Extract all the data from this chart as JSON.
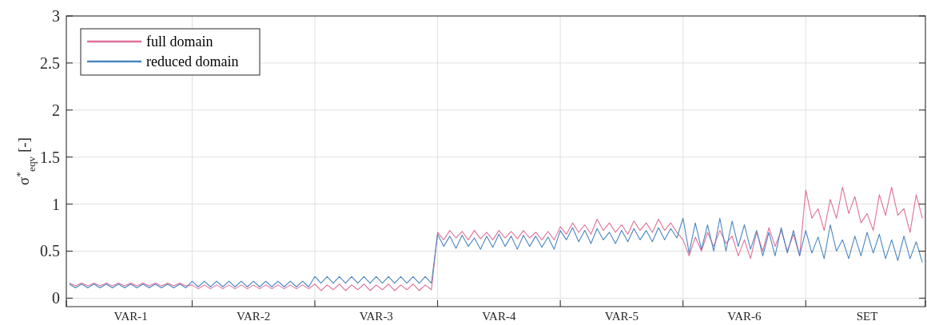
{
  "chart_data": {
    "type": "line",
    "ylabel": "σ$^{*}$$_{eqv}$ [-]",
    "categories": [
      null,
      null,
      null,
      null,
      null,
      null,
      null,
      null,
      null,
      null,
      "VAR-1",
      null,
      null,
      null,
      null,
      null,
      null,
      null,
      null,
      null,
      null,
      null,
      null,
      null,
      null,
      null,
      null,
      null,
      null,
      null,
      "VAR-2",
      null,
      null,
      null,
      null,
      null,
      null,
      null,
      null,
      null,
      null,
      null,
      null,
      null,
      null,
      null,
      null,
      null,
      null,
      null,
      "VAR-3",
      null,
      null,
      null,
      null,
      null,
      null,
      null,
      null,
      null,
      null,
      null,
      null,
      null,
      null,
      null,
      null,
      null,
      null,
      null,
      "VAR-4",
      null,
      null,
      null,
      null,
      null,
      null,
      null,
      null,
      null,
      null,
      null,
      null,
      null,
      null,
      null,
      null,
      null,
      null,
      null,
      "VAR-5",
      null,
      null,
      null,
      null,
      null,
      null,
      null,
      null,
      null,
      null,
      null,
      null,
      null,
      null,
      null,
      null,
      null,
      null,
      null,
      "VAR-6",
      null,
      null,
      null,
      null,
      null,
      null,
      null,
      null,
      null,
      null,
      null,
      null,
      null,
      null,
      null,
      null,
      null,
      null,
      null,
      "SET",
      null,
      null,
      null,
      null,
      null,
      null,
      null,
      null,
      null
    ],
    "series": [
      {
        "name": "full domain",
        "color": "#e0709a",
        "values": [
          0.16,
          0.13,
          0.16,
          0.13,
          0.16,
          0.13,
          0.16,
          0.13,
          0.16,
          0.13,
          0.16,
          0.13,
          0.16,
          0.13,
          0.16,
          0.13,
          0.16,
          0.13,
          0.16,
          0.13,
          0.14,
          0.1,
          0.14,
          0.1,
          0.14,
          0.1,
          0.14,
          0.1,
          0.14,
          0.1,
          0.14,
          0.1,
          0.14,
          0.1,
          0.14,
          0.1,
          0.14,
          0.1,
          0.14,
          0.1,
          0.15,
          0.08,
          0.14,
          0.09,
          0.15,
          0.08,
          0.14,
          0.09,
          0.15,
          0.08,
          0.14,
          0.09,
          0.15,
          0.08,
          0.14,
          0.09,
          0.15,
          0.08,
          0.14,
          0.09,
          0.7,
          0.62,
          0.72,
          0.64,
          0.71,
          0.62,
          0.72,
          0.63,
          0.7,
          0.62,
          0.72,
          0.64,
          0.71,
          0.63,
          0.72,
          0.64,
          0.7,
          0.62,
          0.71,
          0.62,
          0.76,
          0.68,
          0.8,
          0.7,
          0.78,
          0.68,
          0.84,
          0.72,
          0.8,
          0.7,
          0.78,
          0.68,
          0.82,
          0.72,
          0.8,
          0.7,
          0.84,
          0.72,
          0.8,
          0.7,
          0.62,
          0.45,
          0.65,
          0.5,
          0.7,
          0.55,
          0.72,
          0.58,
          0.66,
          0.45,
          0.62,
          0.42,
          0.7,
          0.5,
          0.75,
          0.55,
          0.72,
          0.5,
          0.68,
          0.45,
          1.15,
          0.85,
          0.95,
          0.72,
          1.05,
          0.85,
          1.18,
          0.9,
          1.08,
          0.8,
          0.9,
          0.72,
          1.1,
          0.88,
          1.18,
          0.88,
          0.95,
          0.7,
          1.1,
          0.85
        ]
      },
      {
        "name": "reduced domain",
        "color": "#4a86c0",
        "values": [
          0.15,
          0.11,
          0.15,
          0.11,
          0.15,
          0.11,
          0.15,
          0.11,
          0.15,
          0.11,
          0.15,
          0.11,
          0.15,
          0.11,
          0.15,
          0.11,
          0.15,
          0.11,
          0.15,
          0.11,
          0.18,
          0.12,
          0.18,
          0.12,
          0.18,
          0.12,
          0.18,
          0.12,
          0.18,
          0.12,
          0.18,
          0.12,
          0.18,
          0.12,
          0.18,
          0.12,
          0.18,
          0.12,
          0.18,
          0.12,
          0.23,
          0.16,
          0.23,
          0.16,
          0.23,
          0.16,
          0.23,
          0.16,
          0.23,
          0.16,
          0.23,
          0.16,
          0.23,
          0.16,
          0.23,
          0.16,
          0.23,
          0.16,
          0.23,
          0.16,
          0.68,
          0.55,
          0.66,
          0.53,
          0.67,
          0.55,
          0.64,
          0.52,
          0.66,
          0.54,
          0.68,
          0.55,
          0.66,
          0.52,
          0.67,
          0.55,
          0.66,
          0.54,
          0.65,
          0.52,
          0.72,
          0.62,
          0.75,
          0.6,
          0.72,
          0.58,
          0.74,
          0.62,
          0.7,
          0.58,
          0.72,
          0.6,
          0.74,
          0.62,
          0.72,
          0.6,
          0.75,
          0.62,
          0.74,
          0.64,
          0.85,
          0.48,
          0.8,
          0.52,
          0.78,
          0.5,
          0.85,
          0.5,
          0.82,
          0.55,
          0.78,
          0.52,
          0.72,
          0.45,
          0.7,
          0.45,
          0.75,
          0.48,
          0.72,
          0.45,
          0.72,
          0.48,
          0.65,
          0.42,
          0.78,
          0.5,
          0.62,
          0.42,
          0.66,
          0.45,
          0.7,
          0.48,
          0.68,
          0.42,
          0.62,
          0.4,
          0.66,
          0.42,
          0.6,
          0.38
        ]
      }
    ],
    "ylim": [
      -0.09,
      3
    ],
    "yticks": [
      0,
      0.5,
      1,
      1.5,
      2,
      2.5,
      3
    ],
    "grid": true,
    "legend": "top left",
    "line_style": "solid",
    "marker": "none"
  }
}
